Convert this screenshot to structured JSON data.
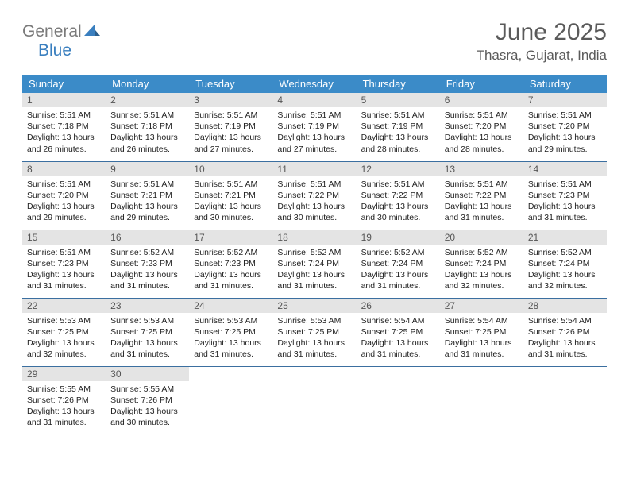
{
  "brand": {
    "first": "General",
    "second": "Blue"
  },
  "title": "June 2025",
  "location": "Thasra, Gujarat, India",
  "colors": {
    "header_bg": "#3b8bc8",
    "header_text": "#ffffff",
    "daynum_bg": "#e4e4e4",
    "row_border": "#3b6fa0",
    "brand_gray": "#7a7a7a",
    "brand_blue": "#3a7fbf"
  },
  "day_headers": [
    "Sunday",
    "Monday",
    "Tuesday",
    "Wednesday",
    "Thursday",
    "Friday",
    "Saturday"
  ],
  "weeks": [
    [
      {
        "n": "1",
        "sr": "5:51 AM",
        "ss": "7:18 PM",
        "dl": "13 hours and 26 minutes."
      },
      {
        "n": "2",
        "sr": "5:51 AM",
        "ss": "7:18 PM",
        "dl": "13 hours and 26 minutes."
      },
      {
        "n": "3",
        "sr": "5:51 AM",
        "ss": "7:19 PM",
        "dl": "13 hours and 27 minutes."
      },
      {
        "n": "4",
        "sr": "5:51 AM",
        "ss": "7:19 PM",
        "dl": "13 hours and 27 minutes."
      },
      {
        "n": "5",
        "sr": "5:51 AM",
        "ss": "7:19 PM",
        "dl": "13 hours and 28 minutes."
      },
      {
        "n": "6",
        "sr": "5:51 AM",
        "ss": "7:20 PM",
        "dl": "13 hours and 28 minutes."
      },
      {
        "n": "7",
        "sr": "5:51 AM",
        "ss": "7:20 PM",
        "dl": "13 hours and 29 minutes."
      }
    ],
    [
      {
        "n": "8",
        "sr": "5:51 AM",
        "ss": "7:20 PM",
        "dl": "13 hours and 29 minutes."
      },
      {
        "n": "9",
        "sr": "5:51 AM",
        "ss": "7:21 PM",
        "dl": "13 hours and 29 minutes."
      },
      {
        "n": "10",
        "sr": "5:51 AM",
        "ss": "7:21 PM",
        "dl": "13 hours and 30 minutes."
      },
      {
        "n": "11",
        "sr": "5:51 AM",
        "ss": "7:22 PM",
        "dl": "13 hours and 30 minutes."
      },
      {
        "n": "12",
        "sr": "5:51 AM",
        "ss": "7:22 PM",
        "dl": "13 hours and 30 minutes."
      },
      {
        "n": "13",
        "sr": "5:51 AM",
        "ss": "7:22 PM",
        "dl": "13 hours and 31 minutes."
      },
      {
        "n": "14",
        "sr": "5:51 AM",
        "ss": "7:23 PM",
        "dl": "13 hours and 31 minutes."
      }
    ],
    [
      {
        "n": "15",
        "sr": "5:51 AM",
        "ss": "7:23 PM",
        "dl": "13 hours and 31 minutes."
      },
      {
        "n": "16",
        "sr": "5:52 AM",
        "ss": "7:23 PM",
        "dl": "13 hours and 31 minutes."
      },
      {
        "n": "17",
        "sr": "5:52 AM",
        "ss": "7:23 PM",
        "dl": "13 hours and 31 minutes."
      },
      {
        "n": "18",
        "sr": "5:52 AM",
        "ss": "7:24 PM",
        "dl": "13 hours and 31 minutes."
      },
      {
        "n": "19",
        "sr": "5:52 AM",
        "ss": "7:24 PM",
        "dl": "13 hours and 31 minutes."
      },
      {
        "n": "20",
        "sr": "5:52 AM",
        "ss": "7:24 PM",
        "dl": "13 hours and 32 minutes."
      },
      {
        "n": "21",
        "sr": "5:52 AM",
        "ss": "7:24 PM",
        "dl": "13 hours and 32 minutes."
      }
    ],
    [
      {
        "n": "22",
        "sr": "5:53 AM",
        "ss": "7:25 PM",
        "dl": "13 hours and 32 minutes."
      },
      {
        "n": "23",
        "sr": "5:53 AM",
        "ss": "7:25 PM",
        "dl": "13 hours and 31 minutes."
      },
      {
        "n": "24",
        "sr": "5:53 AM",
        "ss": "7:25 PM",
        "dl": "13 hours and 31 minutes."
      },
      {
        "n": "25",
        "sr": "5:53 AM",
        "ss": "7:25 PM",
        "dl": "13 hours and 31 minutes."
      },
      {
        "n": "26",
        "sr": "5:54 AM",
        "ss": "7:25 PM",
        "dl": "13 hours and 31 minutes."
      },
      {
        "n": "27",
        "sr": "5:54 AM",
        "ss": "7:25 PM",
        "dl": "13 hours and 31 minutes."
      },
      {
        "n": "28",
        "sr": "5:54 AM",
        "ss": "7:26 PM",
        "dl": "13 hours and 31 minutes."
      }
    ],
    [
      {
        "n": "29",
        "sr": "5:55 AM",
        "ss": "7:26 PM",
        "dl": "13 hours and 31 minutes."
      },
      {
        "n": "30",
        "sr": "5:55 AM",
        "ss": "7:26 PM",
        "dl": "13 hours and 30 minutes."
      },
      null,
      null,
      null,
      null,
      null
    ]
  ],
  "labels": {
    "sunrise": "Sunrise:",
    "sunset": "Sunset:",
    "daylight": "Daylight:"
  }
}
